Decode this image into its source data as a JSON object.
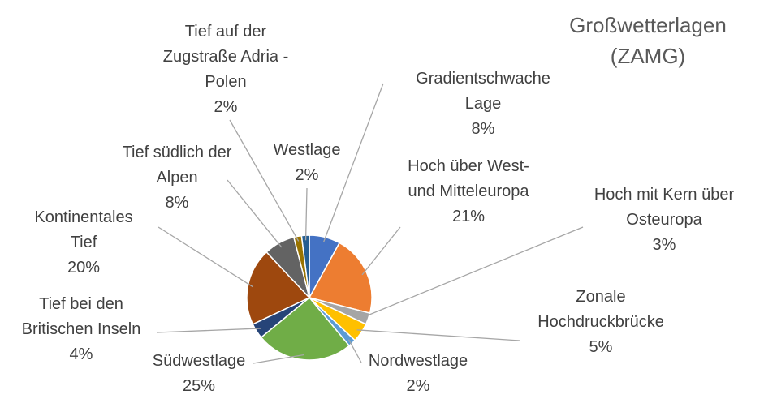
{
  "chart_data": {
    "type": "pie",
    "title": "Großwetterlagen (ZAMG)",
    "categories": [
      "Gradientschwache Lage",
      "Hoch über West- und Mitteleuropa",
      "Hoch mit Kern über Osteuropa",
      "Zonale Hochdruckbrücke",
      "Nordwestlage",
      "Südwestlage",
      "Tief bei den Britischen Inseln",
      "Kontinentales Tief",
      "Tief südlich der Alpen",
      "Tief auf der Zugstraße Adria - Polen",
      "Westlage"
    ],
    "values": [
      8,
      21,
      3,
      5,
      2,
      25,
      4,
      20,
      8,
      2,
      2
    ],
    "value_labels": [
      "8%",
      "21%",
      "3%",
      "5%",
      "2%",
      "25%",
      "4%",
      "20%",
      "8%",
      "2%",
      "2%"
    ],
    "colors": [
      "#4472c4",
      "#ed7d31",
      "#a5a5a5",
      "#ffc000",
      "#5b9bd5",
      "#70ad47",
      "#264478",
      "#9e480e",
      "#636363",
      "#997300",
      "#255e91"
    ]
  }
}
